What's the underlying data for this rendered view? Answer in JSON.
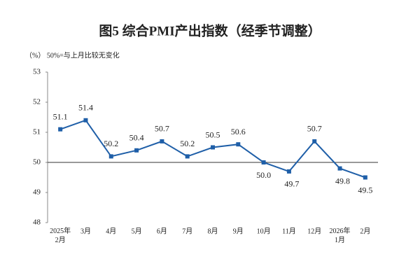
{
  "chart_data": {
    "type": "line",
    "title": "图5  综合PMI产出指数（经季节调整）",
    "subtitle": "（%）  50%=与上月比较无变化",
    "categories": [
      "2025年\n2月",
      "3月",
      "4月",
      "5月",
      "6月",
      "7月",
      "8月",
      "9月",
      "10月",
      "11月",
      "12月",
      "2026年\n1月",
      "2月"
    ],
    "series": [
      {
        "name": "综合PMI产出指数",
        "color": "#1f5fa8",
        "values": [
          51.1,
          51.4,
          50.2,
          50.4,
          50.7,
          50.2,
          50.5,
          50.6,
          50.0,
          49.7,
          50.7,
          49.8,
          49.5
        ],
        "value_labels": [
          "51.1",
          "51.4",
          "50.2",
          "50.4",
          "50.7",
          "50.2",
          "50.5",
          "50.6",
          "50.0",
          "49.7",
          "50.7",
          "49.8",
          "49.5"
        ]
      }
    ],
    "ylim": [
      48,
      53
    ],
    "yticks": [
      48,
      49,
      50,
      51,
      52,
      53
    ],
    "reference_line": 50
  }
}
